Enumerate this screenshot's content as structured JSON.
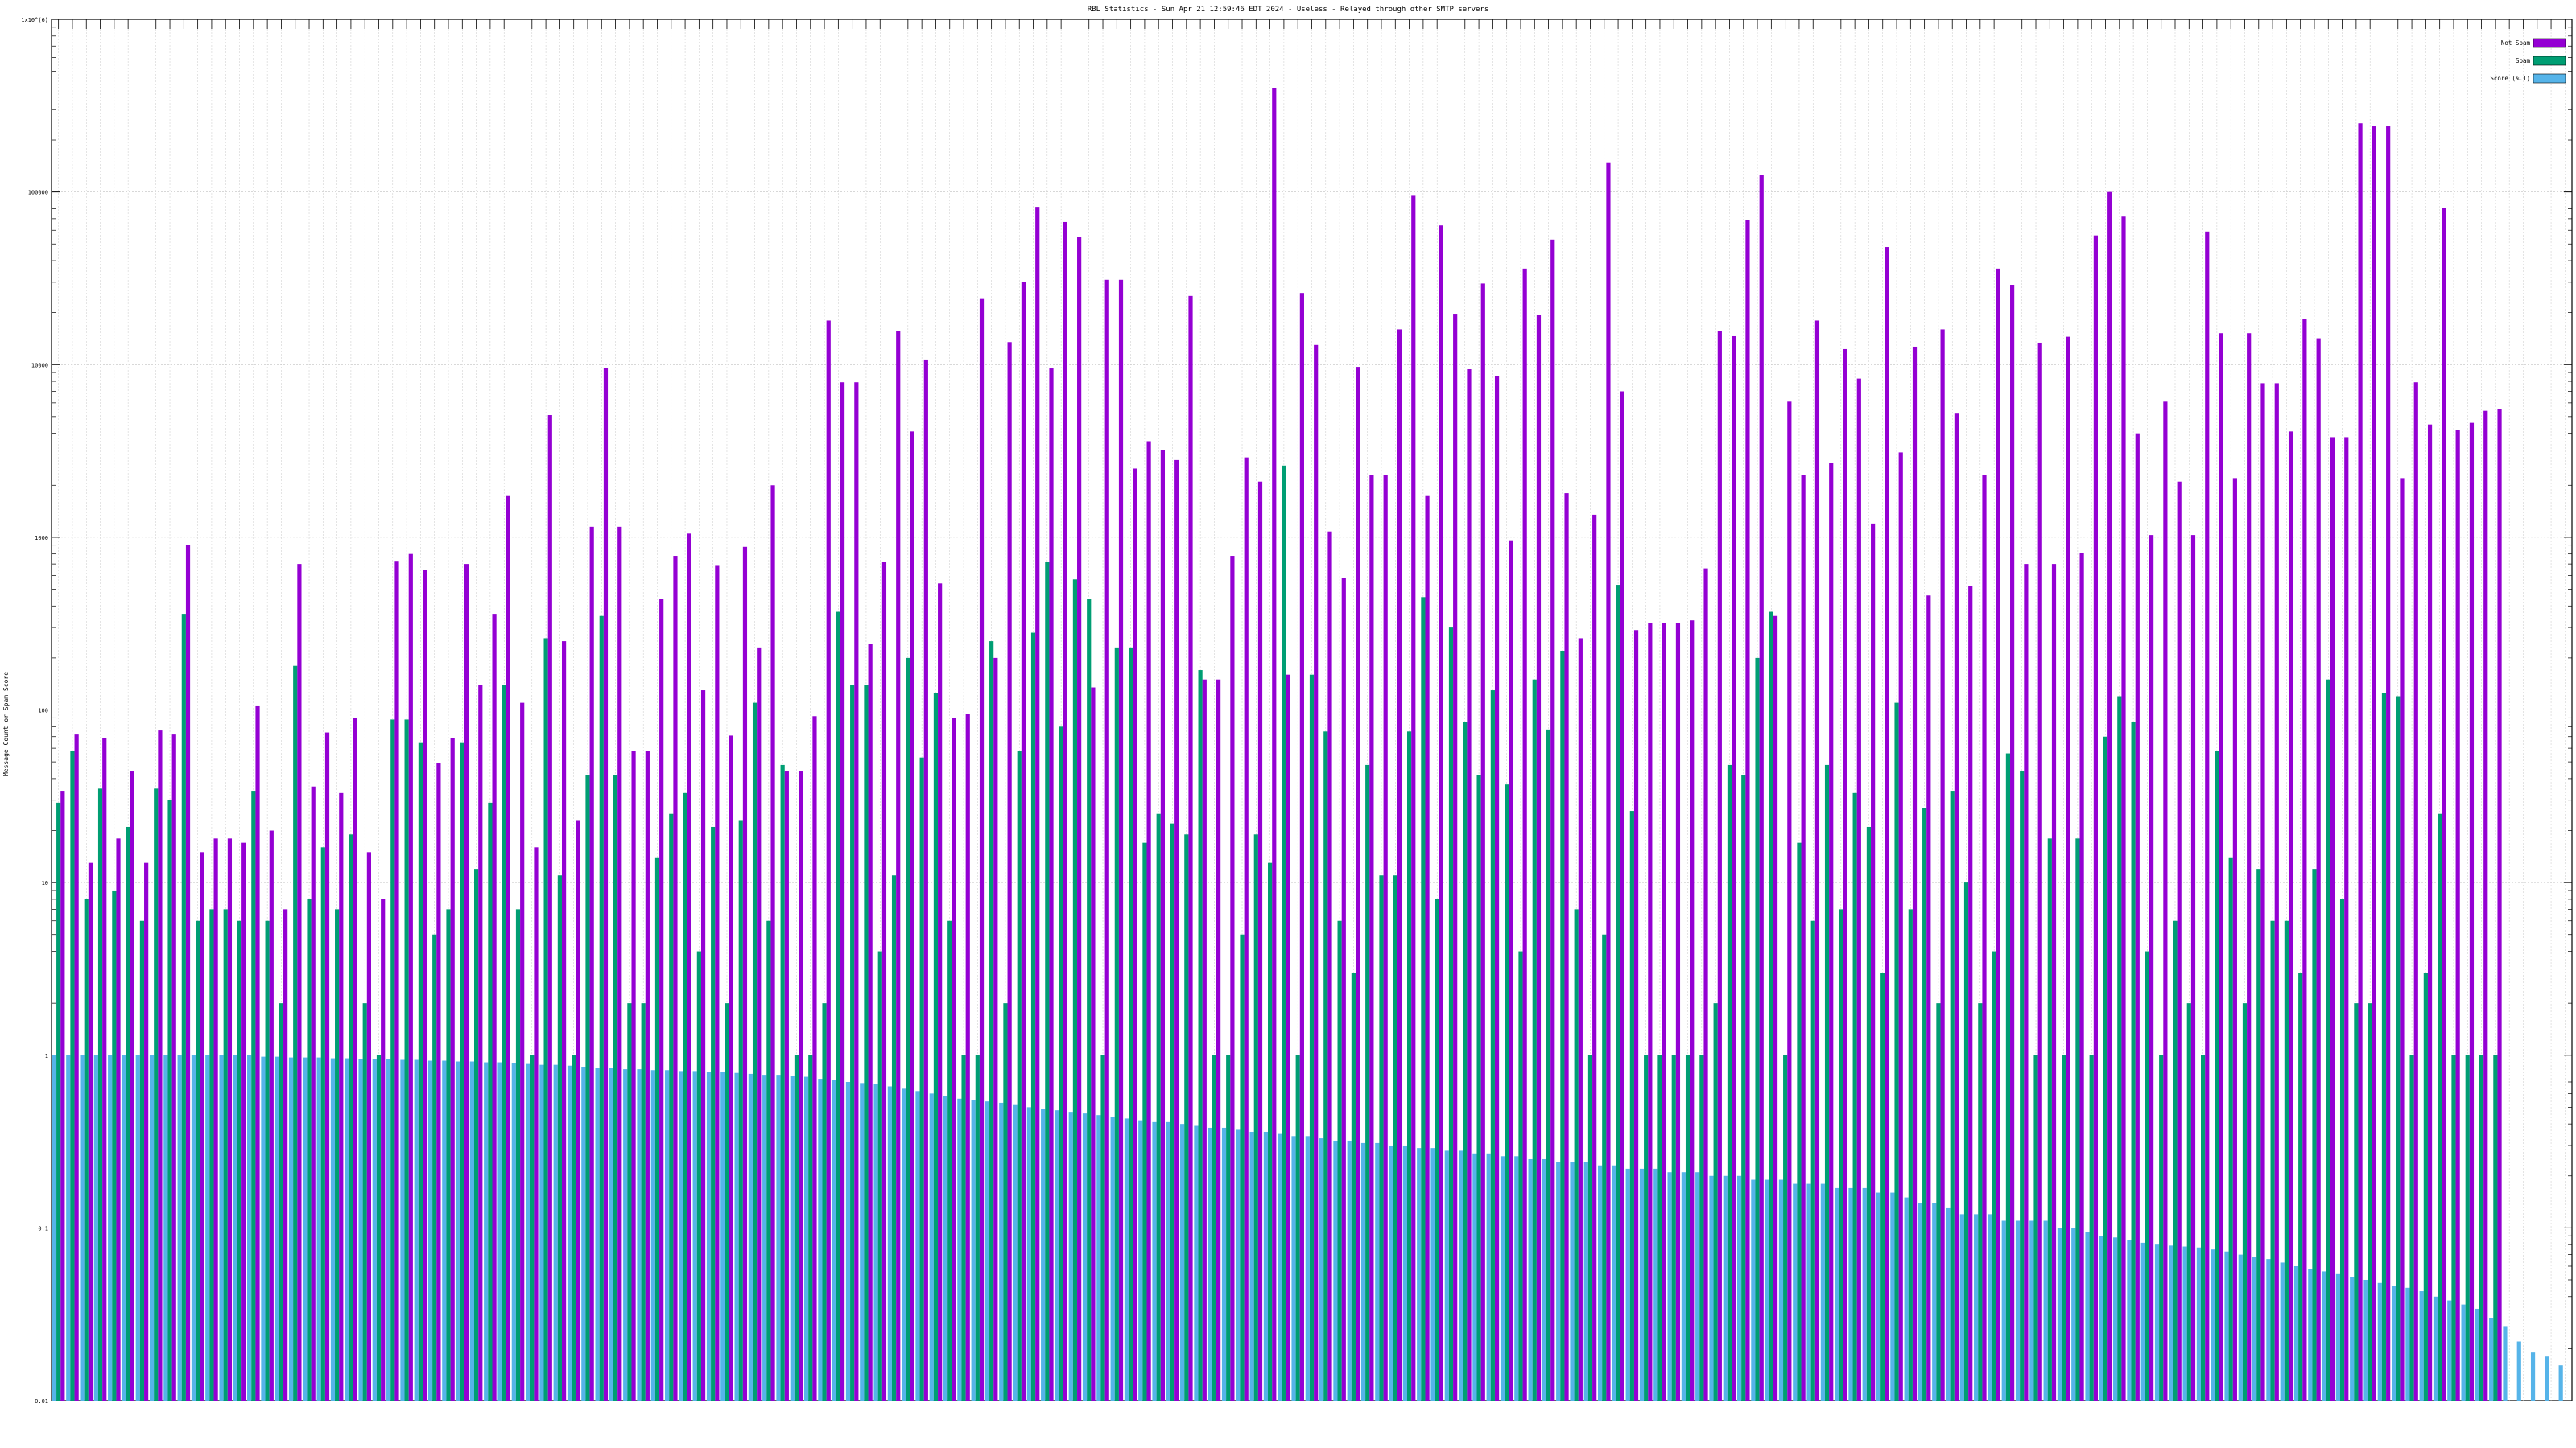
{
  "chart_data": {
    "type": "bar",
    "title": "RBL Statistics - Sun Apr 21 12:59:46 EDT 2024 - Useless - Relayed through other SMTP servers",
    "ylabel": "Message Count or Spam Score",
    "yscale": "log",
    "ylim": [
      0.01,
      1000000
    ],
    "y_ticks": [
      "0.01",
      "0.1",
      "1",
      "10",
      "100",
      "1000",
      "10000",
      "100000",
      "1x10^(6)"
    ],
    "grid": true,
    "legend_position": "top-right",
    "colors": {
      "not_spam": "#9400d3",
      "spam": "#009e73",
      "score": "#56b4e9"
    },
    "series": [
      {
        "name": "Not Spam",
        "values": [
          34,
          72,
          13,
          69,
          18,
          44,
          13,
          76,
          72,
          900,
          15,
          18,
          18,
          17,
          105,
          20,
          7,
          700,
          36,
          74,
          33,
          90,
          15,
          8,
          730,
          800,
          650,
          49,
          69,
          700,
          140,
          360,
          1750,
          110,
          16,
          5100,
          250,
          23,
          1150,
          9600,
          1150,
          58,
          58,
          440,
          780,
          1050,
          130,
          690,
          71,
          880,
          230,
          2000,
          44,
          44,
          92,
          18000,
          7900,
          7900,
          240,
          720,
          15700,
          4100,
          10700,
          540,
          90,
          95,
          24000,
          200,
          13500,
          30000,
          82000,
          9500,
          67000,
          55000,
          135,
          31000,
          31000,
          2500,
          3600,
          3200,
          2800,
          25000,
          150,
          150,
          780,
          2900,
          2100,
          400000,
          160,
          26000,
          13000,
          1080,
          580,
          9700,
          2300,
          2300,
          16000,
          95000,
          1750,
          64000,
          19700,
          9400,
          29500,
          8600,
          960,
          36000,
          19300,
          53000,
          1800,
          260,
          1350,
          147000,
          7000,
          290,
          320,
          320,
          320,
          330,
          660,
          15700,
          14600,
          69000,
          125000,
          350,
          6100,
          2300,
          18000,
          2700,
          12300,
          8300,
          1200,
          48000,
          3100,
          12700,
          460,
          16000,
          5200,
          520,
          2300,
          36000,
          29000,
          700,
          13400,
          700,
          14500,
          810,
          56000,
          100000,
          72000,
          4000,
          1030,
          6100,
          2100,
          1030,
          59000,
          15200,
          2200,
          15200,
          7800,
          7800,
          4100,
          18300,
          14200,
          3800,
          3800,
          250000,
          240000,
          240000,
          2200,
          7900,
          4500,
          81000,
          4200,
          4600,
          5400,
          5500
        ]
      },
      {
        "name": "Spam",
        "values": [
          29,
          58,
          8,
          35,
          9,
          21,
          6,
          35,
          30,
          360,
          6,
          7,
          7,
          6,
          34,
          6,
          2,
          180,
          8,
          16,
          7,
          19,
          2,
          1,
          88,
          88,
          65,
          5,
          7,
          65,
          12,
          29,
          140,
          7,
          1,
          260,
          11,
          1,
          42,
          350,
          42,
          2,
          2,
          14,
          25,
          33,
          4,
          21,
          2,
          23,
          110,
          6,
          48,
          1,
          1,
          2,
          370,
          140,
          140,
          4,
          11,
          200,
          53,
          125,
          6,
          1,
          1,
          250,
          2,
          58,
          280,
          720,
          80,
          570,
          440,
          1,
          230,
          230,
          17,
          25,
          22,
          19,
          170,
          1,
          1,
          5,
          19,
          13,
          2600,
          1,
          160,
          75,
          6,
          3,
          48,
          11,
          11,
          75,
          450,
          8,
          300,
          85,
          42,
          130,
          37,
          4,
          150,
          77,
          220,
          7,
          1,
          5,
          530,
          26,
          1,
          1,
          1,
          1,
          1,
          2,
          48,
          42,
          200,
          370,
          1,
          17,
          6,
          48,
          7,
          33,
          21,
          3,
          110,
          7,
          27,
          2,
          34,
          10,
          2,
          4,
          56,
          44,
          1,
          18,
          1,
          18,
          1,
          70,
          120,
          85,
          4,
          1,
          6,
          2,
          1,
          58,
          14,
          2,
          12,
          6,
          6,
          3,
          12,
          150,
          8,
          2,
          2,
          125,
          120,
          1,
          3,
          25,
          1,
          1,
          1,
          1
        ]
      },
      {
        "name": "Score (%.1)",
        "values": [
          1,
          1,
          1,
          1,
          1,
          1,
          1,
          1,
          1,
          1,
          1,
          1,
          1,
          1,
          1,
          0.98,
          0.98,
          0.97,
          0.97,
          0.97,
          0.96,
          0.96,
          0.95,
          0.95,
          0.95,
          0.94,
          0.94,
          0.93,
          0.93,
          0.92,
          0.92,
          0.91,
          0.91,
          0.9,
          0.89,
          0.88,
          0.88,
          0.87,
          0.85,
          0.84,
          0.84,
          0.83,
          0.83,
          0.82,
          0.82,
          0.81,
          0.81,
          0.8,
          0.8,
          0.79,
          0.78,
          0.77,
          0.77,
          0.76,
          0.75,
          0.73,
          0.72,
          0.7,
          0.69,
          0.68,
          0.66,
          0.64,
          0.62,
          0.6,
          0.58,
          0.56,
          0.55,
          0.54,
          0.53,
          0.52,
          0.5,
          0.49,
          0.48,
          0.47,
          0.46,
          0.45,
          0.44,
          0.43,
          0.42,
          0.41,
          0.41,
          0.4,
          0.39,
          0.38,
          0.38,
          0.37,
          0.36,
          0.36,
          0.35,
          0.34,
          0.34,
          0.33,
          0.32,
          0.32,
          0.31,
          0.31,
          0.3,
          0.3,
          0.29,
          0.29,
          0.28,
          0.28,
          0.27,
          0.27,
          0.26,
          0.26,
          0.25,
          0.25,
          0.24,
          0.24,
          0.24,
          0.23,
          0.23,
          0.22,
          0.22,
          0.22,
          0.21,
          0.21,
          0.21,
          0.2,
          0.2,
          0.2,
          0.19,
          0.19,
          0.19,
          0.18,
          0.18,
          0.18,
          0.17,
          0.17,
          0.17,
          0.16,
          0.16,
          0.15,
          0.14,
          0.14,
          0.13,
          0.12,
          0.12,
          0.12,
          0.11,
          0.11,
          0.11,
          0.11,
          0.1,
          0.1,
          0.095,
          0.09,
          0.088,
          0.085,
          0.082,
          0.08,
          0.079,
          0.078,
          0.077,
          0.075,
          0.073,
          0.07,
          0.068,
          0.066,
          0.063,
          0.06,
          0.058,
          0.056,
          0.054,
          0.052,
          0.05,
          0.048,
          0.046,
          0.045,
          0.043,
          0.04,
          0.038,
          0.036,
          0.034,
          0.03,
          0.027,
          0.022,
          0.019,
          0.018,
          0.016
        ]
      }
    ]
  },
  "legend": {
    "not_spam": "Not Spam",
    "spam": "Spam",
    "score": "Score (%.1)"
  }
}
